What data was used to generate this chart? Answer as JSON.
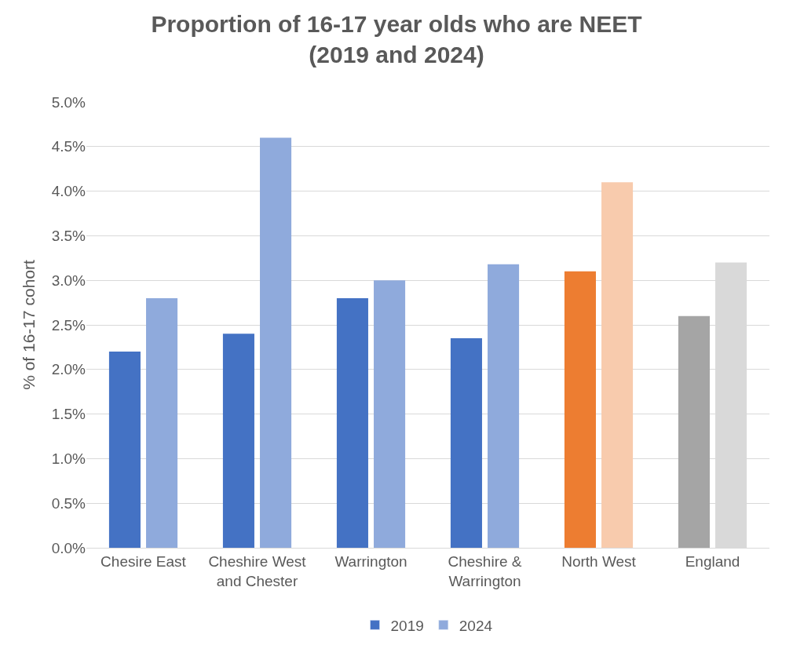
{
  "chart_data": {
    "type": "bar",
    "title": "Proportion of 16-17 year olds who are NEET (2019 and 2024)",
    "ylabel": "% of 16-17 cohort",
    "categories": [
      "Chesire East",
      "Cheshire West and Chester",
      "Warrington",
      "Cheshire & Warrington",
      "North West",
      "England"
    ],
    "series": [
      {
        "name": "2019",
        "color": "#4472c4",
        "colors": [
          "#4472c4",
          "#4472c4",
          "#4472c4",
          "#4472c4",
          "#ed7d31",
          "#a5a5a5"
        ],
        "values": [
          2.2,
          2.4,
          2.8,
          2.35,
          3.1,
          2.6
        ]
      },
      {
        "name": "2024",
        "color": "#8faadc",
        "colors": [
          "#8faadc",
          "#8faadc",
          "#8faadc",
          "#8faadc",
          "#f8cbad",
          "#d9d9d9"
        ],
        "values": [
          2.8,
          4.6,
          3.0,
          3.18,
          4.1,
          3.2
        ]
      }
    ],
    "ylim": [
      0,
      5
    ],
    "yticks": [
      {
        "value": 0,
        "label": "0.0%"
      },
      {
        "value": 0.5,
        "label": "0.5%"
      },
      {
        "value": 1,
        "label": "1.0%"
      },
      {
        "value": 1.5,
        "label": "1.5%"
      },
      {
        "value": 2,
        "label": "2.0%"
      },
      {
        "value": 2.5,
        "label": "2.5%"
      },
      {
        "value": 3,
        "label": "3.0%"
      },
      {
        "value": 3.5,
        "label": "3.5%"
      },
      {
        "value": 4,
        "label": "4.0%"
      },
      {
        "value": 4.5,
        "label": "4.5%"
      },
      {
        "value": 5,
        "label": "5.0%"
      }
    ],
    "grid": "y",
    "legend": "bottom"
  }
}
